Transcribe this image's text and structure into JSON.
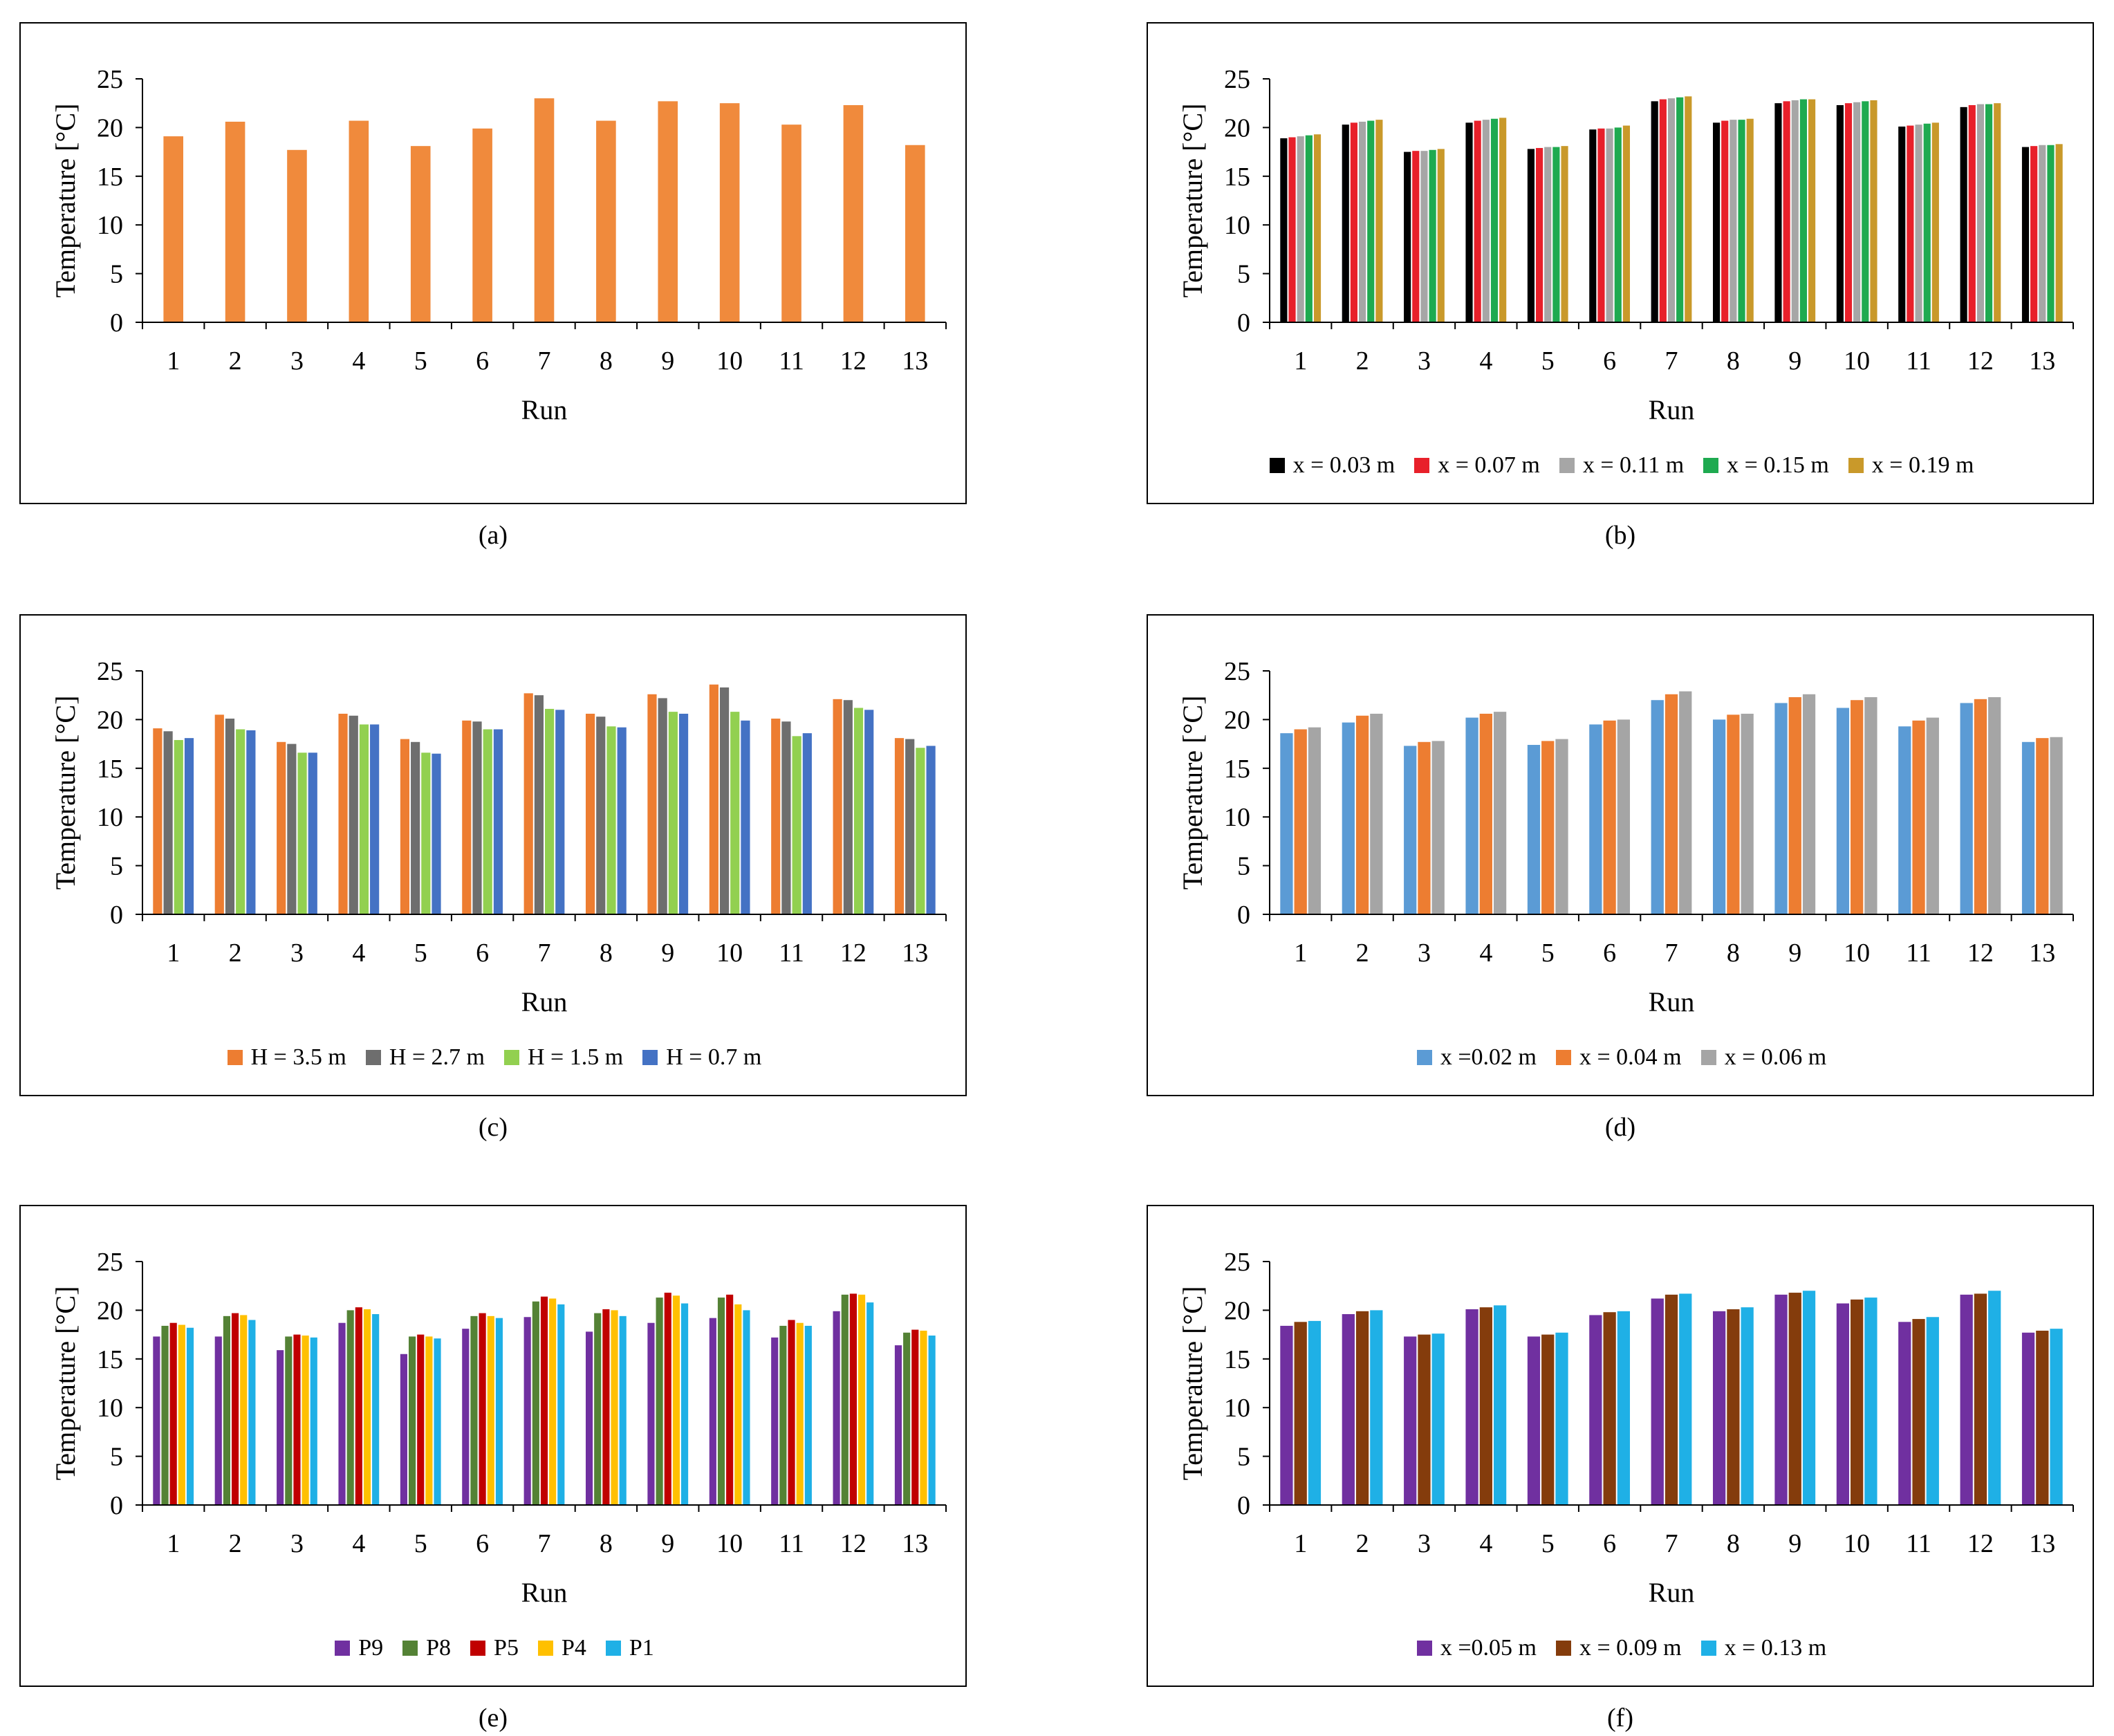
{
  "chart_data": [
    {
      "type": "bar",
      "panel_label": "(a)",
      "categories": [
        "1",
        "2",
        "3",
        "4",
        "5",
        "6",
        "7",
        "8",
        "9",
        "10",
        "11",
        "12",
        "13"
      ],
      "series": [
        {
          "name": "",
          "color": "#F08A3C",
          "values": [
            19.1,
            20.6,
            17.7,
            20.7,
            18.1,
            19.9,
            23.0,
            20.7,
            22.7,
            22.5,
            20.3,
            22.3,
            18.2
          ]
        }
      ],
      "ylabel": "Temperature [°C]",
      "xlabel": "Run",
      "ylim": [
        0,
        25
      ],
      "yticks": [
        0,
        5,
        10,
        15,
        20,
        25
      ],
      "legend": false
    },
    {
      "type": "bar",
      "panel_label": "(b)",
      "categories": [
        "1",
        "2",
        "3",
        "4",
        "5",
        "6",
        "7",
        "8",
        "9",
        "10",
        "11",
        "12",
        "13"
      ],
      "series": [
        {
          "name": "x = 0.03 m",
          "color": "#000000",
          "values": [
            18.9,
            20.3,
            17.5,
            20.5,
            17.8,
            19.8,
            22.7,
            20.5,
            22.5,
            22.3,
            20.1,
            22.1,
            18.0
          ]
        },
        {
          "name": "x = 0.07 m",
          "color": "#E8202A",
          "values": [
            19.0,
            20.5,
            17.6,
            20.7,
            17.9,
            19.9,
            22.9,
            20.7,
            22.7,
            22.5,
            20.2,
            22.3,
            18.1
          ]
        },
        {
          "name": "x = 0.11 m",
          "color": "#A6A6A6",
          "values": [
            19.1,
            20.6,
            17.6,
            20.8,
            18.0,
            19.9,
            23.0,
            20.8,
            22.8,
            22.6,
            20.3,
            22.4,
            18.2
          ]
        },
        {
          "name": "x = 0.15 m",
          "color": "#1EAA50",
          "values": [
            19.2,
            20.7,
            17.7,
            20.9,
            18.0,
            20.0,
            23.1,
            20.8,
            22.9,
            22.7,
            20.4,
            22.4,
            18.2
          ]
        },
        {
          "name": "x = 0.19 m",
          "color": "#C9992A",
          "values": [
            19.3,
            20.8,
            17.8,
            21.0,
            18.1,
            20.2,
            23.2,
            20.9,
            22.9,
            22.8,
            20.5,
            22.5,
            18.3
          ]
        }
      ],
      "ylabel": "Temperature [°C]",
      "xlabel": "Run",
      "ylim": [
        0,
        25
      ],
      "yticks": [
        0,
        5,
        10,
        15,
        20,
        25
      ],
      "legend": true
    },
    {
      "type": "bar",
      "panel_label": "(c)",
      "categories": [
        "1",
        "2",
        "3",
        "4",
        "5",
        "6",
        "7",
        "8",
        "9",
        "10",
        "11",
        "12",
        "13"
      ],
      "series": [
        {
          "name": "H = 3.5 m",
          "color": "#ED7D31",
          "values": [
            19.1,
            20.5,
            17.7,
            20.6,
            18.0,
            19.9,
            22.7,
            20.6,
            22.6,
            23.6,
            20.1,
            22.1,
            18.1
          ]
        },
        {
          "name": "H = 2.7 m",
          "color": "#6E6E6E",
          "values": [
            18.8,
            20.1,
            17.5,
            20.4,
            17.7,
            19.8,
            22.5,
            20.3,
            22.2,
            23.3,
            19.8,
            22.0,
            18.0
          ]
        },
        {
          "name": "H = 1.5 m",
          "color": "#92D050",
          "values": [
            17.9,
            19.0,
            16.6,
            19.5,
            16.6,
            19.0,
            21.1,
            19.3,
            20.8,
            20.8,
            18.3,
            21.2,
            17.1
          ]
        },
        {
          "name": "H = 0.7 m",
          "color": "#4472C4",
          "values": [
            18.1,
            18.9,
            16.6,
            19.5,
            16.5,
            19.0,
            21.0,
            19.2,
            20.6,
            19.9,
            18.6,
            21.0,
            17.3
          ]
        }
      ],
      "ylabel": "Temperature [°C]",
      "xlabel": "Run",
      "ylim": [
        0,
        25
      ],
      "yticks": [
        0,
        5,
        10,
        15,
        20,
        25
      ],
      "legend": true
    },
    {
      "type": "bar",
      "panel_label": "(d)",
      "categories": [
        "1",
        "2",
        "3",
        "4",
        "5",
        "6",
        "7",
        "8",
        "9",
        "10",
        "11",
        "12",
        "13"
      ],
      "series": [
        {
          "name": "x =0.02 m",
          "color": "#5B9BD5",
          "values": [
            18.6,
            19.7,
            17.3,
            20.2,
            17.4,
            19.5,
            22.0,
            20.0,
            21.7,
            21.2,
            19.3,
            21.7,
            17.7
          ]
        },
        {
          "name": "x = 0.04 m",
          "color": "#ED7D31",
          "values": [
            19.0,
            20.4,
            17.7,
            20.6,
            17.8,
            19.9,
            22.6,
            20.5,
            22.3,
            22.0,
            19.9,
            22.1,
            18.1
          ]
        },
        {
          "name": "x = 0.06 m",
          "color": "#A5A5A5",
          "values": [
            19.2,
            20.6,
            17.8,
            20.8,
            18.0,
            20.0,
            22.9,
            20.6,
            22.6,
            22.3,
            20.2,
            22.3,
            18.2
          ]
        }
      ],
      "ylabel": "Temperature [°C]",
      "xlabel": "Run",
      "ylim": [
        0,
        25
      ],
      "yticks": [
        0,
        5,
        10,
        15,
        20,
        25
      ],
      "legend": true
    },
    {
      "type": "bar",
      "panel_label": "(e)",
      "categories": [
        "1",
        "2",
        "3",
        "4",
        "5",
        "6",
        "7",
        "8",
        "9",
        "10",
        "11",
        "12",
        "13"
      ],
      "series": [
        {
          "name": "P9",
          "color": "#7030A0",
          "values": [
            17.3,
            17.3,
            15.9,
            18.7,
            15.5,
            18.1,
            19.3,
            17.8,
            18.7,
            19.2,
            17.2,
            19.9,
            16.4
          ]
        },
        {
          "name": "P8",
          "color": "#548235",
          "values": [
            18.4,
            19.4,
            17.3,
            20.0,
            17.3,
            19.4,
            20.9,
            19.7,
            21.3,
            21.3,
            18.4,
            21.6,
            17.7
          ]
        },
        {
          "name": "P5",
          "color": "#C00000",
          "values": [
            18.7,
            19.7,
            17.5,
            20.3,
            17.5,
            19.7,
            21.4,
            20.1,
            21.8,
            21.6,
            19.0,
            21.7,
            18.0
          ]
        },
        {
          "name": "P4",
          "color": "#FFC000",
          "values": [
            18.5,
            19.5,
            17.4,
            20.1,
            17.3,
            19.4,
            21.2,
            20.0,
            21.5,
            20.6,
            18.7,
            21.6,
            17.9
          ]
        },
        {
          "name": "P1",
          "color": "#1FB0E6",
          "values": [
            18.2,
            19.0,
            17.2,
            19.6,
            17.1,
            19.2,
            20.6,
            19.4,
            20.7,
            20.0,
            18.4,
            20.8,
            17.4
          ]
        }
      ],
      "ylabel": "Temperature [°C]",
      "xlabel": "Run",
      "ylim": [
        0,
        25
      ],
      "yticks": [
        0,
        5,
        10,
        15,
        20,
        25
      ],
      "legend": true
    },
    {
      "type": "bar",
      "panel_label": "(f)",
      "categories": [
        "1",
        "2",
        "3",
        "4",
        "5",
        "6",
        "7",
        "8",
        "9",
        "10",
        "11",
        "12",
        "13"
      ],
      "series": [
        {
          "name": "x =0.05 m",
          "color": "#7030A0",
          "values": [
            18.4,
            19.6,
            17.3,
            20.1,
            17.3,
            19.5,
            21.2,
            19.9,
            21.6,
            20.7,
            18.8,
            21.6,
            17.7
          ]
        },
        {
          "name": "x = 0.09 m",
          "color": "#843C0C",
          "values": [
            18.8,
            19.9,
            17.5,
            20.3,
            17.5,
            19.8,
            21.6,
            20.1,
            21.8,
            21.1,
            19.1,
            21.7,
            17.9
          ]
        },
        {
          "name": "x = 0.13 m",
          "color": "#1FB0E6",
          "values": [
            18.9,
            20.0,
            17.6,
            20.5,
            17.7,
            19.9,
            21.7,
            20.3,
            22.0,
            21.3,
            19.3,
            22.0,
            18.1
          ]
        }
      ],
      "ylabel": "Temperature [°C]",
      "xlabel": "Run",
      "ylim": [
        0,
        25
      ],
      "yticks": [
        0,
        5,
        10,
        15,
        20,
        25
      ],
      "legend": true
    }
  ]
}
